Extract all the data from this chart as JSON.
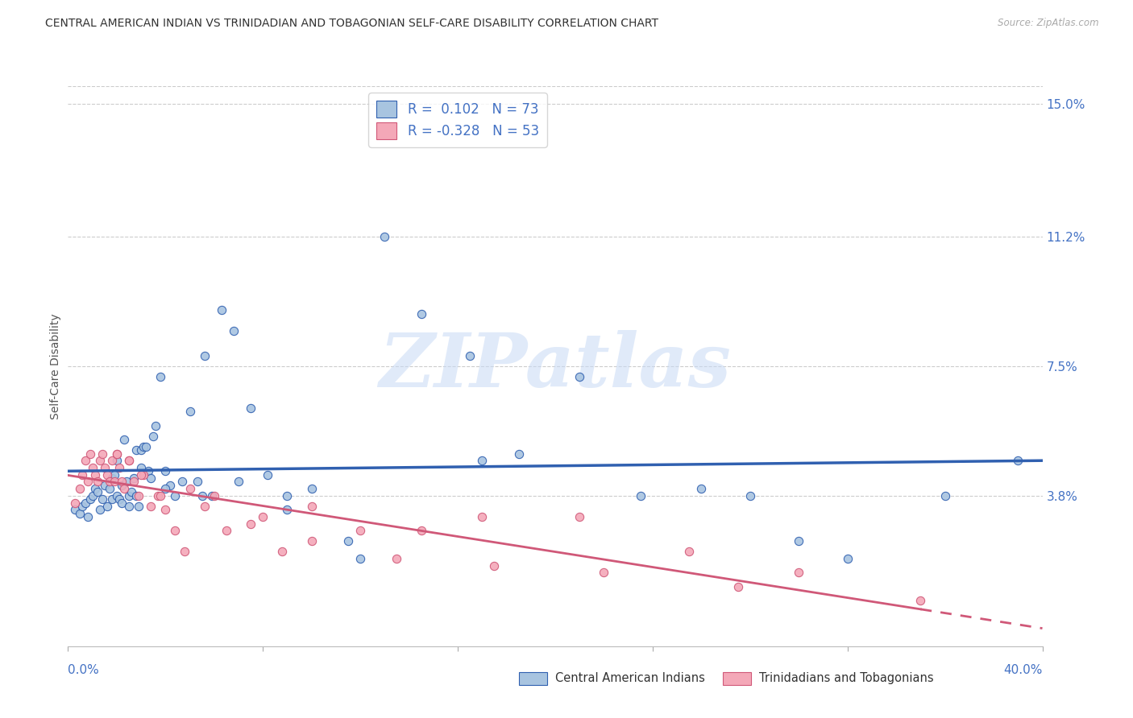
{
  "title": "CENTRAL AMERICAN INDIAN VS TRINIDADIAN AND TOBAGONIAN SELF-CARE DISABILITY CORRELATION CHART",
  "source": "Source: ZipAtlas.com",
  "ylabel": "Self-Care Disability",
  "xlim": [
    0.0,
    0.4
  ],
  "ylim": [
    -0.005,
    0.155
  ],
  "yticks_right": [
    0.038,
    0.075,
    0.112,
    0.15
  ],
  "ytick_labels_right": [
    "3.8%",
    "7.5%",
    "11.2%",
    "15.0%"
  ],
  "blue_R": 0.102,
  "blue_N": 73,
  "pink_R": -0.328,
  "pink_N": 53,
  "blue_color": "#a8c4e0",
  "pink_color": "#f4a8b8",
  "blue_line_color": "#3060b0",
  "pink_line_color": "#d05878",
  "legend_label_blue": "Central American Indians",
  "legend_label_pink": "Trinidadians and Tobagonians",
  "watermark": "ZIPatlas",
  "blue_scatter_x": [
    0.003,
    0.005,
    0.006,
    0.007,
    0.008,
    0.009,
    0.01,
    0.011,
    0.012,
    0.013,
    0.014,
    0.015,
    0.016,
    0.017,
    0.018,
    0.018,
    0.019,
    0.02,
    0.021,
    0.022,
    0.022,
    0.023,
    0.024,
    0.025,
    0.026,
    0.027,
    0.028,
    0.028,
    0.029,
    0.03,
    0.031,
    0.032,
    0.033,
    0.034,
    0.035,
    0.036,
    0.038,
    0.04,
    0.042,
    0.044,
    0.047,
    0.05,
    0.053,
    0.056,
    0.059,
    0.063,
    0.068,
    0.075,
    0.082,
    0.09,
    0.1,
    0.115,
    0.13,
    0.145,
    0.165,
    0.185,
    0.21,
    0.235,
    0.26,
    0.28,
    0.3,
    0.32,
    0.36,
    0.39,
    0.02,
    0.025,
    0.03,
    0.04,
    0.055,
    0.07,
    0.09,
    0.12,
    0.17
  ],
  "blue_scatter_y": [
    0.034,
    0.033,
    0.035,
    0.036,
    0.032,
    0.037,
    0.038,
    0.04,
    0.039,
    0.034,
    0.037,
    0.041,
    0.035,
    0.04,
    0.037,
    0.043,
    0.044,
    0.038,
    0.037,
    0.041,
    0.036,
    0.054,
    0.042,
    0.038,
    0.039,
    0.043,
    0.038,
    0.051,
    0.035,
    0.051,
    0.052,
    0.052,
    0.045,
    0.043,
    0.055,
    0.058,
    0.072,
    0.045,
    0.041,
    0.038,
    0.042,
    0.062,
    0.042,
    0.078,
    0.038,
    0.091,
    0.085,
    0.063,
    0.044,
    0.034,
    0.04,
    0.025,
    0.112,
    0.09,
    0.078,
    0.05,
    0.072,
    0.038,
    0.04,
    0.038,
    0.025,
    0.02,
    0.038,
    0.048,
    0.048,
    0.035,
    0.046,
    0.04,
    0.038,
    0.042,
    0.038,
    0.02,
    0.048
  ],
  "pink_scatter_x": [
    0.003,
    0.005,
    0.006,
    0.007,
    0.008,
    0.009,
    0.01,
    0.011,
    0.012,
    0.013,
    0.014,
    0.015,
    0.016,
    0.017,
    0.018,
    0.019,
    0.02,
    0.021,
    0.022,
    0.023,
    0.025,
    0.027,
    0.029,
    0.031,
    0.034,
    0.037,
    0.04,
    0.044,
    0.05,
    0.056,
    0.065,
    0.075,
    0.088,
    0.1,
    0.12,
    0.145,
    0.17,
    0.21,
    0.255,
    0.3,
    0.02,
    0.025,
    0.03,
    0.038,
    0.048,
    0.06,
    0.08,
    0.1,
    0.135,
    0.175,
    0.22,
    0.275,
    0.35
  ],
  "pink_scatter_y": [
    0.036,
    0.04,
    0.044,
    0.048,
    0.042,
    0.05,
    0.046,
    0.044,
    0.042,
    0.048,
    0.05,
    0.046,
    0.044,
    0.042,
    0.048,
    0.042,
    0.05,
    0.046,
    0.042,
    0.04,
    0.048,
    0.042,
    0.038,
    0.044,
    0.035,
    0.038,
    0.034,
    0.028,
    0.04,
    0.035,
    0.028,
    0.03,
    0.022,
    0.035,
    0.028,
    0.028,
    0.032,
    0.032,
    0.022,
    0.016,
    0.05,
    0.048,
    0.044,
    0.038,
    0.022,
    0.038,
    0.032,
    0.025,
    0.02,
    0.018,
    0.016,
    0.012,
    0.008
  ]
}
